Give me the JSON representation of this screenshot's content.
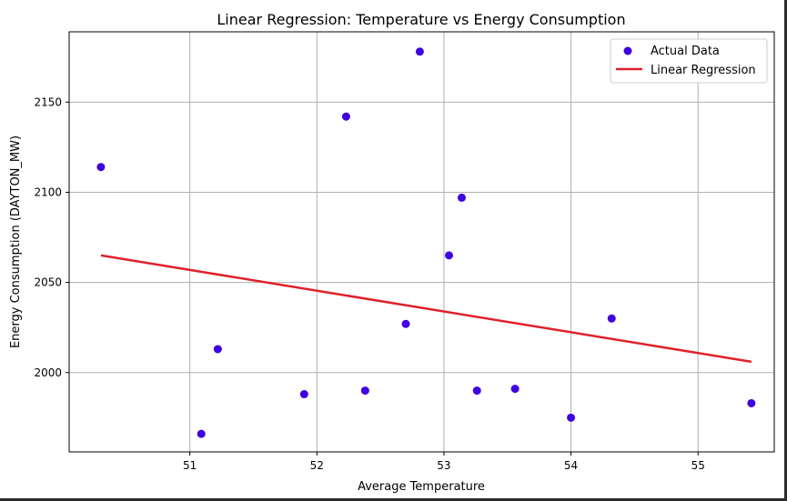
{
  "chart_data": {
    "type": "scatter",
    "title": "Linear Regression: Temperature vs Energy Consumption",
    "xlabel": "Average Temperature",
    "ylabel": "Energy Consumption (DAYTON_MW)",
    "xlim": [
      50.05,
      55.6
    ],
    "ylim": [
      1956,
      2189
    ],
    "xticks": [
      51,
      52,
      53,
      54,
      55
    ],
    "yticks": [
      2000,
      2050,
      2100,
      2150
    ],
    "grid": true,
    "legend_position": "top-right",
    "series": [
      {
        "name": "Actual Data",
        "kind": "scatter",
        "color": "#4000e0",
        "points": [
          [
            50.3,
            2114
          ],
          [
            51.09,
            1966
          ],
          [
            51.22,
            2013
          ],
          [
            51.9,
            1988
          ],
          [
            52.23,
            2142
          ],
          [
            52.38,
            1990
          ],
          [
            52.7,
            2027
          ],
          [
            52.81,
            2178
          ],
          [
            53.04,
            2065
          ],
          [
            53.14,
            2097
          ],
          [
            53.26,
            1990
          ],
          [
            53.56,
            1991
          ],
          [
            54.0,
            1975
          ],
          [
            54.32,
            2030
          ],
          [
            55.42,
            1983
          ]
        ]
      },
      {
        "name": "Linear Regression",
        "kind": "line",
        "color": "#e0202a",
        "points": [
          [
            50.3,
            2065
          ],
          [
            55.42,
            2006
          ]
        ]
      }
    ]
  }
}
